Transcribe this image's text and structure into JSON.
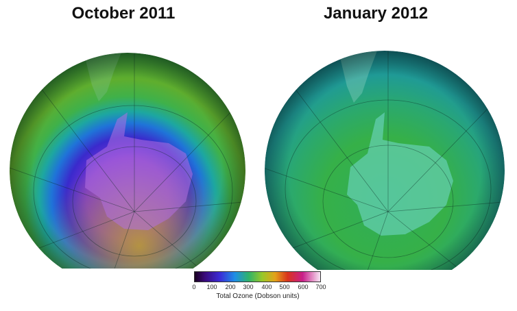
{
  "panels": [
    {
      "title": "October 2011"
    },
    {
      "title": "January 2012"
    }
  ],
  "colorbar": {
    "ticks": [
      "0",
      "100",
      "200",
      "300",
      "400",
      "500",
      "600",
      "700"
    ],
    "label": "Total Ozone (Dobson units)"
  },
  "colors": {
    "hole_core": "#8a3fd6",
    "hole_edge": "#2a1fc4",
    "ring_blue": "#1f74d8",
    "ring_green": "#3fb14a",
    "collar_olive": "#9aa32a",
    "cyan_ocean": "#1f9a96",
    "land": "#6fd6c6"
  }
}
